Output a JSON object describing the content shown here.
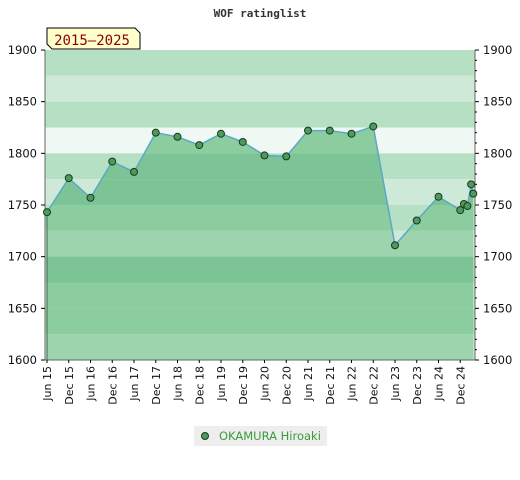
{
  "chart_data": {
    "type": "line",
    "title": "WOF ratinglist",
    "period_label": "2015–2025",
    "xlabel": "",
    "ylabel": "",
    "ylim": [
      1600,
      1900
    ],
    "y_ticks": [
      1600,
      1650,
      1700,
      1750,
      1800,
      1850,
      1900
    ],
    "x_tick_labels": [
      "Jun 15",
      "Dec 15",
      "Jun 16",
      "Dec 16",
      "Jun 17",
      "Dec 17",
      "Jun 18",
      "Dec 18",
      "Jun 19",
      "Dec 19",
      "Jun 20",
      "Dec 20",
      "Jun 21",
      "Dec 21",
      "Jun 22",
      "Dec 22",
      "Jun 23",
      "Dec 23",
      "Jun 24",
      "Dec 24"
    ],
    "x_domain": [
      0,
      19.6
    ],
    "legend_position": "bottom",
    "series": [
      {
        "name": "OKAMURA Hiroaki",
        "color": "#3a9a3a",
        "points": [
          {
            "x": 0,
            "y": 1743
          },
          {
            "x": 1,
            "y": 1776
          },
          {
            "x": 2,
            "y": 1757
          },
          {
            "x": 3,
            "y": 1792
          },
          {
            "x": 4,
            "y": 1782
          },
          {
            "x": 5,
            "y": 1820
          },
          {
            "x": 6,
            "y": 1816
          },
          {
            "x": 7,
            "y": 1808
          },
          {
            "x": 8,
            "y": 1819
          },
          {
            "x": 9,
            "y": 1811
          },
          {
            "x": 10,
            "y": 1798
          },
          {
            "x": 11,
            "y": 1797
          },
          {
            "x": 12,
            "y": 1822
          },
          {
            "x": 13,
            "y": 1822
          },
          {
            "x": 14,
            "y": 1819
          },
          {
            "x": 15,
            "y": 1826
          },
          {
            "x": 16,
            "y": 1711
          },
          {
            "x": 17,
            "y": 1735
          },
          {
            "x": 18,
            "y": 1758
          },
          {
            "x": 19,
            "y": 1745
          },
          {
            "x": 19.17,
            "y": 1751
          },
          {
            "x": 19.33,
            "y": 1749
          },
          {
            "x": 19.5,
            "y": 1770
          },
          {
            "x": 19.6,
            "y": 1761
          }
        ]
      }
    ],
    "colors": {
      "band_light": "#cfe9d8",
      "band_mid": "#b5e0c3",
      "band_pale": "#f0f8f3",
      "area_dark": "#7cc495",
      "area_mid": "#8ccd9f",
      "area_light": "#9dd3ad",
      "line": "#5ba8c8",
      "marker": "#4c9a5f",
      "axis": "#000000"
    }
  }
}
